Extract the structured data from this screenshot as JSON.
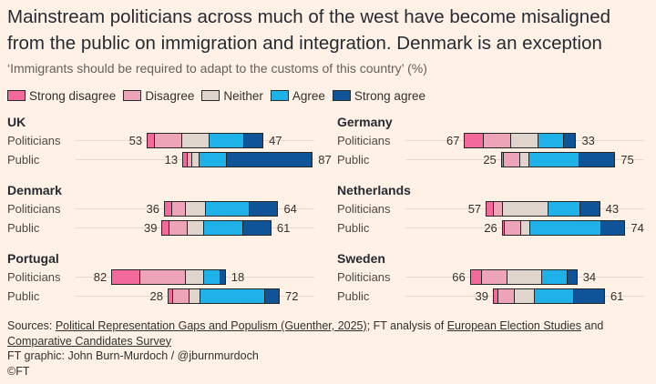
{
  "title": "Mainstream politicians across much of the west have become misaligned from the public on immigration and integration. Denmark is an exception",
  "subtitle": "‘Immigrants should be required to adapt to the customs of this country’ (%)",
  "colors": {
    "strong_disagree": "#f4699b",
    "disagree": "#eea4b8",
    "neither": "#e0d5cd",
    "agree": "#1eb2e8",
    "strong_agree": "#0f5499"
  },
  "chart_data": {
    "type": "bar",
    "stacked": "diverging",
    "legend": {
      "placement": "top-left",
      "entries": [
        "Strong disagree",
        "Disagree",
        "Neither",
        "Agree",
        "Strong agree"
      ]
    },
    "categories": [
      "Politicians",
      "Public"
    ],
    "panels": [
      {
        "country": "UK",
        "rows": [
          {
            "label": "Politicians",
            "values": [
              3,
              12,
              12,
              15,
              8
            ],
            "disagree_total": 53,
            "agree_total": 47
          },
          {
            "label": "Public",
            "values": [
              2,
              2,
              3,
              12,
              37
            ],
            "disagree_total": 13,
            "agree_total": 87
          }
        ]
      },
      {
        "country": "Germany",
        "rows": [
          {
            "label": "Politicians",
            "values": [
              8,
              12,
              12,
              11,
              5
            ],
            "disagree_total": 67,
            "agree_total": 33
          },
          {
            "label": "Public",
            "values": [
              1,
              7,
              4,
              22,
              15
            ],
            "disagree_total": 25,
            "agree_total": 75
          }
        ]
      },
      {
        "country": "Denmark",
        "rows": [
          {
            "label": "Politicians",
            "values": [
              3,
              6,
              9,
              19,
              12
            ],
            "disagree_total": 36,
            "agree_total": 64
          },
          {
            "label": "Public",
            "values": [
              3,
              8,
              7,
              17,
              12
            ],
            "disagree_total": 39,
            "agree_total": 61
          }
        ]
      },
      {
        "country": "Netherlands",
        "rows": [
          {
            "label": "Politicians",
            "values": [
              3,
              4,
              20,
              14,
              8
            ],
            "disagree_total": 57,
            "agree_total": 43
          },
          {
            "label": "Public",
            "values": [
              1,
              7,
              4,
              31,
              10
            ],
            "disagree_total": 26,
            "agree_total": 74
          }
        ]
      },
      {
        "country": "Portugal",
        "rows": [
          {
            "label": "Politicians",
            "values": [
              12,
              20,
              8,
              7,
              2
            ],
            "disagree_total": 82,
            "agree_total": 18
          },
          {
            "label": "Public",
            "values": [
              2,
              7,
              5,
              28,
              6
            ],
            "disagree_total": 28,
            "agree_total": 72
          }
        ]
      },
      {
        "country": "Sweden",
        "rows": [
          {
            "label": "Politicians",
            "values": [
              5,
              11,
              15,
              11,
              4
            ],
            "disagree_total": 66,
            "agree_total": 34
          },
          {
            "label": "Public",
            "values": [
              2,
              7,
              9,
              17,
              13
            ],
            "disagree_total": 39,
            "agree_total": 61
          }
        ]
      }
    ]
  },
  "sources": {
    "prefix": "Sources: ",
    "link1": "Political Representation Gaps and Populism (Guenther, 2025)",
    "middle1": "; FT analysis of ",
    "link2": "European Election Studies",
    "middle2": " and ",
    "link3": "Comparative Candidates Survey",
    "credit": "FT graphic: John Burn-Murdoch / @jburnmurdoch",
    "copyright": "©FT"
  }
}
